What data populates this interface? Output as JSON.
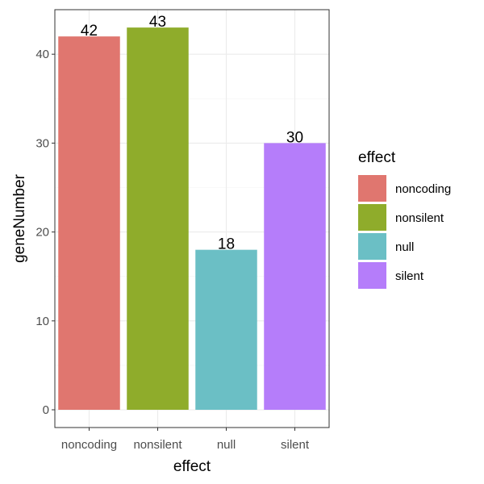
{
  "chart_data": {
    "type": "bar",
    "categories": [
      "noncoding",
      "nonsilent",
      "null",
      "silent"
    ],
    "values": [
      42,
      43,
      18,
      30
    ],
    "data_labels": [
      "42",
      "43",
      "18",
      "30"
    ],
    "colors": [
      "#e0766f",
      "#8fac2b",
      "#6bbfc5",
      "#b57dfa"
    ],
    "xlabel": "effect",
    "ylabel": "geneNumber",
    "ylim": [
      0,
      45
    ],
    "y_ticks": [
      0,
      10,
      20,
      30,
      40
    ],
    "y_tick_labels": [
      "0",
      "10",
      "20",
      "30",
      "40"
    ],
    "grid": true,
    "legend": {
      "title": "effect",
      "entries": [
        "noncoding",
        "nonsilent",
        "null",
        "silent"
      ],
      "placement": "right"
    }
  }
}
